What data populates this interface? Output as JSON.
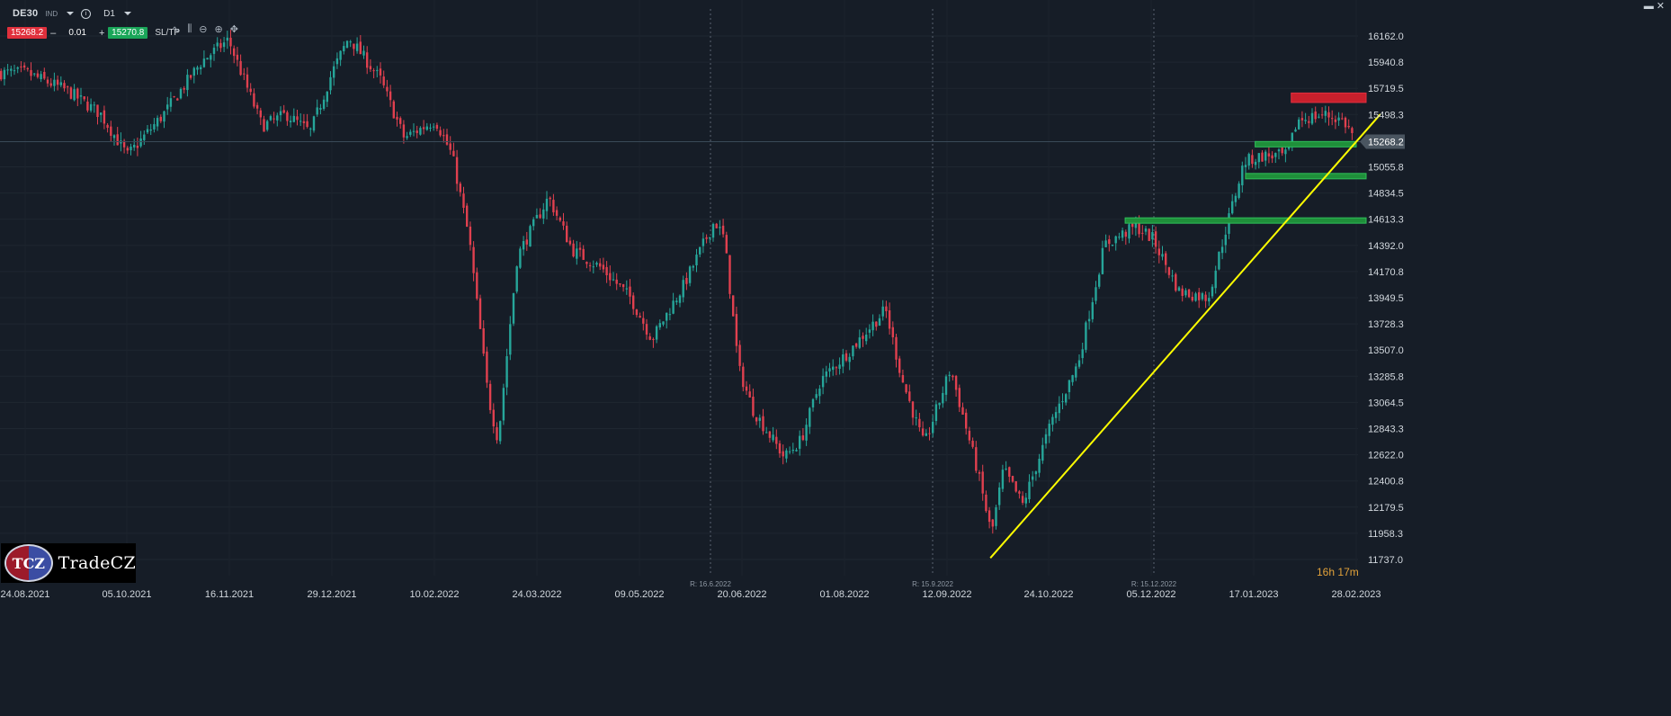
{
  "toolbar": {
    "symbol": "DE30",
    "exchange": "IND",
    "timeframe": "D1",
    "sell_price": "15268.2",
    "quantity": "0.01",
    "buy_price": "15270.8",
    "minus": "–",
    "plus": "+",
    "sltp_label": "SL/TP",
    "info": "i"
  },
  "logo": {
    "badge": "TCZ",
    "name": "TradeCZ"
  },
  "timer": {
    "hours": "16",
    "h_unit": "h",
    "minutes": "17",
    "m_unit": "m"
  },
  "colors": {
    "background": "#161d27",
    "bull": "#26a69a",
    "bear": "#e0404f",
    "resistance_zone": "#c8202c",
    "support_zone": "#1f8f3a",
    "trendline": "#ffff00",
    "current_price_tag": "#4a5560"
  },
  "chart_data": {
    "type": "candlestick",
    "symbol": "DE30",
    "timeframe": "D1",
    "title": "",
    "x_tick_labels": [
      "24.08.2021",
      "05.10.2021",
      "16.11.2021",
      "29.12.2021",
      "10.02.2022",
      "24.03.2022",
      "09.05.2022",
      "20.06.2022",
      "01.08.2022",
      "12.09.2022",
      "24.10.2022",
      "05.12.2022",
      "17.01.2023",
      "28.02.2023"
    ],
    "y_tick_labels": [
      "16162.0",
      "15940.8",
      "15719.5",
      "15498.3",
      "15268.2",
      "15055.8",
      "14834.5",
      "14613.3",
      "14392.0",
      "14170.8",
      "13949.5",
      "13728.3",
      "13507.0",
      "13285.8",
      "13064.5",
      "12843.3",
      "12622.0",
      "12400.8",
      "12179.5",
      "11958.3",
      "11737.0"
    ],
    "ylim": [
      11737.0,
      16162.0
    ],
    "current_price": 15268.2,
    "vertical_markers": [
      {
        "label": "R: 16.6.2022",
        "date": "2022-06-16"
      },
      {
        "label": "R: 15.9.2022",
        "date": "2022-09-15"
      },
      {
        "label": "R: 15.12.2022",
        "date": "2022-12-15"
      }
    ],
    "close_path": [
      {
        "date": "2021-08-24",
        "close": 15850
      },
      {
        "date": "2021-09-10",
        "close": 15700
      },
      {
        "date": "2021-09-24",
        "close": 15500
      },
      {
        "date": "2021-10-05",
        "close": 15150
      },
      {
        "date": "2021-10-20",
        "close": 15500
      },
      {
        "date": "2021-11-05",
        "close": 15950
      },
      {
        "date": "2021-11-16",
        "close": 16130
      },
      {
        "date": "2021-11-30",
        "close": 15400
      },
      {
        "date": "2021-12-10",
        "close": 15500
      },
      {
        "date": "2021-12-20",
        "close": 15350
      },
      {
        "date": "2021-12-29",
        "close": 15850
      },
      {
        "date": "2022-01-05",
        "close": 16150
      },
      {
        "date": "2022-01-18",
        "close": 15800
      },
      {
        "date": "2022-01-28",
        "close": 15300
      },
      {
        "date": "2022-02-10",
        "close": 15450
      },
      {
        "date": "2022-02-17",
        "close": 15150
      },
      {
        "date": "2022-02-24",
        "close": 14450
      },
      {
        "date": "2022-03-04",
        "close": 13100
      },
      {
        "date": "2022-03-08",
        "close": 12750
      },
      {
        "date": "2022-03-16",
        "close": 14300
      },
      {
        "date": "2022-03-29",
        "close": 14800
      },
      {
        "date": "2022-04-08",
        "close": 14350
      },
      {
        "date": "2022-04-20",
        "close": 14200
      },
      {
        "date": "2022-05-02",
        "close": 13950
      },
      {
        "date": "2022-05-11",
        "close": 13600
      },
      {
        "date": "2022-05-24",
        "close": 14050
      },
      {
        "date": "2022-06-06",
        "close": 14600
      },
      {
        "date": "2022-06-10",
        "close": 14450
      },
      {
        "date": "2022-06-16",
        "close": 13350
      },
      {
        "date": "2022-06-22",
        "close": 13000
      },
      {
        "date": "2022-07-05",
        "close": 12600
      },
      {
        "date": "2022-07-12",
        "close": 12750
      },
      {
        "date": "2022-07-20",
        "close": 13250
      },
      {
        "date": "2022-08-01",
        "close": 13500
      },
      {
        "date": "2022-08-16",
        "close": 13850
      },
      {
        "date": "2022-08-23",
        "close": 13250
      },
      {
        "date": "2022-09-01",
        "close": 12700
      },
      {
        "date": "2022-09-12",
        "close": 13350
      },
      {
        "date": "2022-09-23",
        "close": 12500
      },
      {
        "date": "2022-09-29",
        "close": 11950
      },
      {
        "date": "2022-10-04",
        "close": 12500
      },
      {
        "date": "2022-10-12",
        "close": 12200
      },
      {
        "date": "2022-10-24",
        "close": 12900
      },
      {
        "date": "2022-11-04",
        "close": 13400
      },
      {
        "date": "2022-11-15",
        "close": 14400
      },
      {
        "date": "2022-11-28",
        "close": 14550
      },
      {
        "date": "2022-12-05",
        "close": 14450
      },
      {
        "date": "2022-12-16",
        "close": 14000
      },
      {
        "date": "2022-12-28",
        "close": 13950
      },
      {
        "date": "2023-01-04",
        "close": 14500
      },
      {
        "date": "2023-01-12",
        "close": 15100
      },
      {
        "date": "2023-01-20",
        "close": 15150
      },
      {
        "date": "2023-01-30",
        "close": 15150
      },
      {
        "date": "2023-02-03",
        "close": 15450
      },
      {
        "date": "2023-02-14",
        "close": 15500
      },
      {
        "date": "2023-02-22",
        "close": 15450
      },
      {
        "date": "2023-02-28",
        "close": 15270
      }
    ],
    "zones": [
      {
        "type": "resistance",
        "from_date": "2023-02-01",
        "to_date": "2023-03-10",
        "low": 15600,
        "high": 15680
      },
      {
        "type": "support",
        "from_date": "2023-01-17",
        "to_date": "2023-02-28",
        "low": 15245,
        "high": 15270
      },
      {
        "type": "support",
        "from_date": "2023-01-13",
        "to_date": "2023-03-10",
        "low": 14960,
        "high": 15000
      },
      {
        "type": "support",
        "from_date": "2022-11-24",
        "to_date": "2023-03-10",
        "low": 14580,
        "high": 14625
      }
    ],
    "trendline": {
      "from_date": "2022-09-29",
      "from_price": 11750,
      "to_date": "2023-03-10",
      "to_price": 15500
    }
  }
}
